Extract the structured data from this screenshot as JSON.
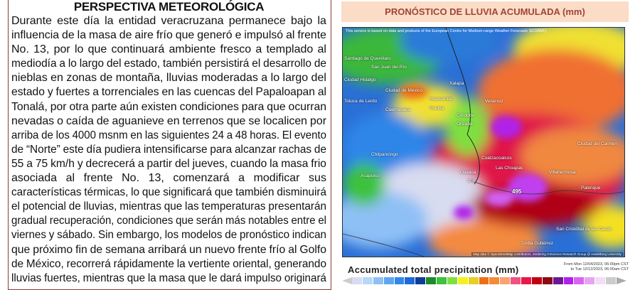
{
  "left": {
    "title": "PERSPECTIVA METEOROLÓGICA",
    "lines": [
      "Durante este día la entidad veracruzana permanece bajo la",
      "influencia de la masa de aire frío que generó e impulsó al frente",
      "No. 13, por lo que continuará ambiente fresco a templado al",
      "mediodía a lo largo del estado, también persistirá el desarrollo de",
      "nieblas en zonas de montaña, lluvias moderadas a lo largo del",
      "estado y fuertes a torrenciales en las cuencas del Papaloapan al",
      "Tonalá, por otra parte aún existen condiciones para que ocurran",
      "nevadas o caída de aguanieve en terrenos que se localicen por",
      "arriba de los 4000 msnm en las siguientes 24 a 48 horas. El evento",
      "de “Norte” este día pudiera intensificarse para alcanzar rachas de",
      "55 a 75 km/h y decrecerá a partir del jueves, cuando la masa frio",
      "asociada al frente No. 13, comenzará a modificar sus",
      "características térmicas, lo que significará que también disminuirá",
      "el potencial de lluvias, mientras que las temperaturas presentarán",
      "gradual recuperación, condiciones que serán más notables entre el",
      "viernes y sábado. Sin embargo, los modelos de pronóstico indican",
      "que próximo fin de semana arribará un  nuevo frente frío al Golfo",
      "de México, recorrerá rápidamente la vertiente oriental, generando",
      "lluvias fuertes, mientras que la masa que le dará impulso originará"
    ]
  },
  "right": {
    "title": "PRONÓSTICO DE LLUVIA ACUMULADA (mm)",
    "map": {
      "credit": "This service is based on data and products of the European Centre for Medium-range Weather Forecasts (ECMWF)",
      "attribution": "Map data © OpenStreetMap contributors, rendering GIScience Research Group @ Heidelberg University",
      "max_label": "495",
      "cities": [
        "Santiago de Querétaro",
        "San Juan del Río",
        "Ciudad Hidalgo",
        "Toluca de Lerdo",
        "Ciudad de México",
        "Cuernavaca",
        "Huamantla",
        "Puebla",
        "Xalapa",
        "Veracruz",
        "Córdoba",
        "Orizaba",
        "Oaxaca",
        "Chilpancingo",
        "Acapulco",
        "Coatzacoalcos",
        "Las Choapas",
        "Villahermosa",
        "Palenque",
        "Ciudad del Carmen",
        "Isla",
        "Tuxtla Gutiérrez",
        "San Cristóbal de las Casas"
      ]
    },
    "legend": {
      "title": "Accumulated total precipitation (mm)",
      "from": "From Mon 12/04/2023, 06:00pm CST",
      "to": "to Tue 12/12/2023, 06:00am CST",
      "colors": [
        "#d8dcf0",
        "#b8d8f8",
        "#90c0f4",
        "#60a6ee",
        "#3088e8",
        "#1e6ad6",
        "#0e3e98",
        "#1e8a2a",
        "#3cc23c",
        "#80e040",
        "#f4f020",
        "#e6d020",
        "#ee6e18",
        "#f68a38",
        "#f8a472",
        "#f05282",
        "#e81848",
        "#c00010",
        "#8c0a14",
        "#6a1898",
        "#b020e8",
        "#d864f0",
        "#e8a4f2",
        "#f4dcf8",
        "#cccccc"
      ]
    }
  }
}
